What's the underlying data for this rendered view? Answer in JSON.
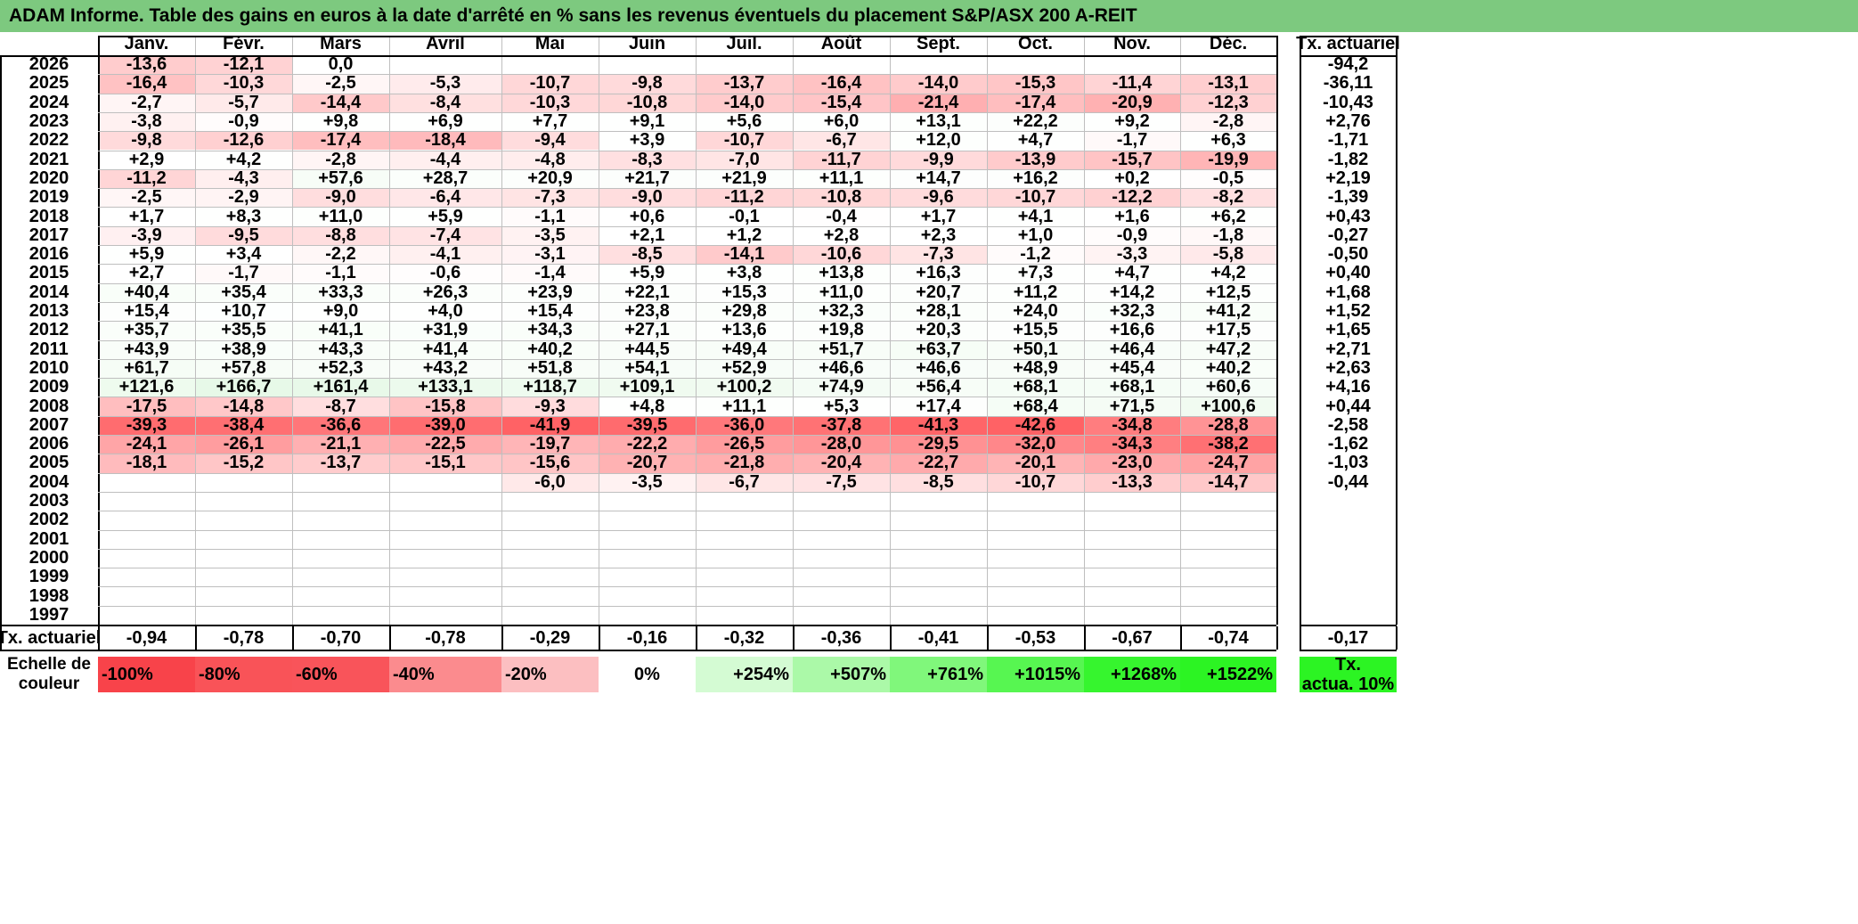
{
  "title": "ADAM Informe. Table des gains en euros à la date d'arrêté en % sans les revenus éventuels du placement S&P/ASX 200 A-REIT",
  "months": [
    "Janv.",
    "Févr.",
    "Mars",
    "Avril",
    "Mai",
    "Juin",
    "Juil.",
    "Août",
    "Sept.",
    "Oct.",
    "Nov.",
    "Déc."
  ],
  "annual_header": "Tx. actuariel",
  "rows": [
    {
      "year": "2026",
      "values": [
        "-13,6",
        "-12,1",
        "0,0",
        "",
        "",
        "",
        "",
        "",
        "",
        "",
        "",
        ""
      ],
      "rate": "-94,2"
    },
    {
      "year": "2025",
      "values": [
        "-16,4",
        "-10,3",
        "-2,5",
        "-5,3",
        "-10,7",
        "-9,8",
        "-13,7",
        "-16,4",
        "-14,0",
        "-15,3",
        "-11,4",
        "-13,1"
      ],
      "rate": "-36,11"
    },
    {
      "year": "2024",
      "values": [
        "-2,7",
        "-5,7",
        "-14,4",
        "-8,4",
        "-10,3",
        "-10,8",
        "-14,0",
        "-15,4",
        "-21,4",
        "-17,4",
        "-20,9",
        "-12,3"
      ],
      "rate": "-10,43"
    },
    {
      "year": "2023",
      "values": [
        "-3,8",
        "-0,9",
        "+9,8",
        "+6,9",
        "+7,7",
        "+9,1",
        "+5,6",
        "+6,0",
        "+13,1",
        "+22,2",
        "+9,2",
        "-2,8"
      ],
      "rate": "+2,76"
    },
    {
      "year": "2022",
      "values": [
        "-9,8",
        "-12,6",
        "-17,4",
        "-18,4",
        "-9,4",
        "+3,9",
        "-10,7",
        "-6,7",
        "+12,0",
        "+4,7",
        "-1,7",
        "+6,3"
      ],
      "rate": "-1,71"
    },
    {
      "year": "2021",
      "values": [
        "+2,9",
        "+4,2",
        "-2,8",
        "-4,4",
        "-4,8",
        "-8,3",
        "-7,0",
        "-11,7",
        "-9,9",
        "-13,9",
        "-15,7",
        "-19,9"
      ],
      "rate": "-1,82"
    },
    {
      "year": "2020",
      "values": [
        "-11,2",
        "-4,3",
        "+57,6",
        "+28,7",
        "+20,9",
        "+21,7",
        "+21,9",
        "+11,1",
        "+14,7",
        "+16,2",
        "+0,2",
        "-0,5"
      ],
      "rate": "+2,19"
    },
    {
      "year": "2019",
      "values": [
        "-2,5",
        "-2,9",
        "-9,0",
        "-6,4",
        "-7,3",
        "-9,0",
        "-11,2",
        "-10,8",
        "-9,6",
        "-10,7",
        "-12,2",
        "-8,2"
      ],
      "rate": "-1,39"
    },
    {
      "year": "2018",
      "values": [
        "+1,7",
        "+8,3",
        "+11,0",
        "+5,9",
        "-1,1",
        "+0,6",
        "-0,1",
        "-0,4",
        "+1,7",
        "+4,1",
        "+1,6",
        "+6,2"
      ],
      "rate": "+0,43"
    },
    {
      "year": "2017",
      "values": [
        "-3,9",
        "-9,5",
        "-8,8",
        "-7,4",
        "-3,5",
        "+2,1",
        "+1,2",
        "+2,8",
        "+2,3",
        "+1,0",
        "-0,9",
        "-1,8"
      ],
      "rate": "-0,27"
    },
    {
      "year": "2016",
      "values": [
        "+5,9",
        "+3,4",
        "-2,2",
        "-4,1",
        "-3,1",
        "-8,5",
        "-14,1",
        "-10,6",
        "-7,3",
        "-1,2",
        "-3,3",
        "-5,8"
      ],
      "rate": "-0,50"
    },
    {
      "year": "2015",
      "values": [
        "+2,7",
        "-1,7",
        "-1,1",
        "-0,6",
        "-1,4",
        "+5,9",
        "+3,8",
        "+13,8",
        "+16,3",
        "+7,3",
        "+4,7",
        "+4,2"
      ],
      "rate": "+0,40"
    },
    {
      "year": "2014",
      "values": [
        "+40,4",
        "+35,4",
        "+33,3",
        "+26,3",
        "+23,9",
        "+22,1",
        "+15,3",
        "+11,0",
        "+20,7",
        "+11,2",
        "+14,2",
        "+12,5"
      ],
      "rate": "+1,68"
    },
    {
      "year": "2013",
      "values": [
        "+15,4",
        "+10,7",
        "+9,0",
        "+4,0",
        "+15,4",
        "+23,8",
        "+29,8",
        "+32,3",
        "+28,1",
        "+24,0",
        "+32,3",
        "+41,2"
      ],
      "rate": "+1,52"
    },
    {
      "year": "2012",
      "values": [
        "+35,7",
        "+35,5",
        "+41,1",
        "+31,9",
        "+34,3",
        "+27,1",
        "+13,6",
        "+19,8",
        "+20,3",
        "+15,5",
        "+16,6",
        "+17,5"
      ],
      "rate": "+1,65"
    },
    {
      "year": "2011",
      "values": [
        "+43,9",
        "+38,9",
        "+43,3",
        "+41,4",
        "+40,2",
        "+44,5",
        "+49,4",
        "+51,7",
        "+63,7",
        "+50,1",
        "+46,4",
        "+47,2"
      ],
      "rate": "+2,71"
    },
    {
      "year": "2010",
      "values": [
        "+61,7",
        "+57,8",
        "+52,3",
        "+43,2",
        "+51,8",
        "+54,1",
        "+52,9",
        "+46,6",
        "+46,6",
        "+48,9",
        "+45,4",
        "+40,2"
      ],
      "rate": "+2,63"
    },
    {
      "year": "2009",
      "values": [
        "+121,6",
        "+166,7",
        "+161,4",
        "+133,1",
        "+118,7",
        "+109,1",
        "+100,2",
        "+74,9",
        "+56,4",
        "+68,1",
        "+68,1",
        "+60,6"
      ],
      "rate": "+4,16"
    },
    {
      "year": "2008",
      "values": [
        "-17,5",
        "-14,8",
        "-8,7",
        "-15,8",
        "-9,3",
        "+4,8",
        "+11,1",
        "+5,3",
        "+17,4",
        "+68,4",
        "+71,5",
        "+100,6"
      ],
      "rate": "+0,44"
    },
    {
      "year": "2007",
      "values": [
        "-39,3",
        "-38,4",
        "-36,6",
        "-39,0",
        "-41,9",
        "-39,5",
        "-36,0",
        "-37,8",
        "-41,3",
        "-42,6",
        "-34,8",
        "-28,8"
      ],
      "rate": "-2,58"
    },
    {
      "year": "2006",
      "values": [
        "-24,1",
        "-26,1",
        "-21,1",
        "-22,5",
        "-19,7",
        "-22,2",
        "-26,5",
        "-28,0",
        "-29,5",
        "-32,0",
        "-34,3",
        "-38,2"
      ],
      "rate": "-1,62"
    },
    {
      "year": "2005",
      "values": [
        "-18,1",
        "-15,2",
        "-13,7",
        "-15,1",
        "-15,6",
        "-20,7",
        "-21,8",
        "-20,4",
        "-22,7",
        "-20,1",
        "-23,0",
        "-24,7"
      ],
      "rate": "-1,03"
    },
    {
      "year": "2004",
      "values": [
        "",
        "",
        "",
        "",
        "-6,0",
        "-3,5",
        "-6,7",
        "-7,5",
        "-8,5",
        "-10,7",
        "-13,3",
        "-14,7"
      ],
      "rate": "-0,44"
    },
    {
      "year": "2003",
      "values": [
        "",
        "",
        "",
        "",
        "",
        "",
        "",
        "",
        "",
        "",
        "",
        ""
      ],
      "rate": ""
    },
    {
      "year": "2002",
      "values": [
        "",
        "",
        "",
        "",
        "",
        "",
        "",
        "",
        "",
        "",
        "",
        ""
      ],
      "rate": ""
    },
    {
      "year": "2001",
      "values": [
        "",
        "",
        "",
        "",
        "",
        "",
        "",
        "",
        "",
        "",
        "",
        ""
      ],
      "rate": ""
    },
    {
      "year": "2000",
      "values": [
        "",
        "",
        "",
        "",
        "",
        "",
        "",
        "",
        "",
        "",
        "",
        ""
      ],
      "rate": ""
    },
    {
      "year": "1999",
      "values": [
        "",
        "",
        "",
        "",
        "",
        "",
        "",
        "",
        "",
        "",
        "",
        ""
      ],
      "rate": ""
    },
    {
      "year": "1998",
      "values": [
        "",
        "",
        "",
        "",
        "",
        "",
        "",
        "",
        "",
        "",
        "",
        ""
      ],
      "rate": ""
    },
    {
      "year": "1997",
      "values": [
        "",
        "",
        "",
        "",
        "",
        "",
        "",
        "",
        "",
        "",
        "",
        ""
      ],
      "rate": ""
    }
  ],
  "summary": {
    "label": "Tx. actuariel",
    "values": [
      "-0,94",
      "-0,78",
      "-0,70",
      "-0,78",
      "-0,29",
      "-0,16",
      "-0,32",
      "-0,36",
      "-0,41",
      "-0,53",
      "-0,67",
      "-0,74"
    ],
    "rate": "-0,17"
  },
  "scale": {
    "label_line1": "Echelle de",
    "label_line2": "couleur",
    "steps": [
      {
        "text": "-100%",
        "color": "#f8434a",
        "align": "l"
      },
      {
        "text": "-80%",
        "color": "#f95358",
        "align": "l"
      },
      {
        "text": "-60%",
        "color": "#f9545a",
        "align": "l"
      },
      {
        "text": "-40%",
        "color": "#fb8b8e",
        "align": "l"
      },
      {
        "text": "-20%",
        "color": "#fcbfc1",
        "align": "l"
      },
      {
        "text": "0%",
        "color": "#ffffff",
        "align": "c"
      },
      {
        "text": "+254%",
        "color": "#d4fbd3",
        "align": "r"
      },
      {
        "text": "+507%",
        "color": "#abf9a8",
        "align": "r"
      },
      {
        "text": "+761%",
        "color": "#80f77b",
        "align": "r"
      },
      {
        "text": "+1015%",
        "color": "#57f651",
        "align": "r"
      },
      {
        "text": "+1268%",
        "color": "#36f52e",
        "align": "r"
      },
      {
        "text": "+1522%",
        "color": "#2cf423",
        "align": "r"
      }
    ],
    "rate_line1": "Tx.",
    "rate_line2": "actua. 10%",
    "rate_color": "#2cf423"
  },
  "colors": {
    "title_bg": "#7dc97f",
    "neg_max": "#f8696b",
    "pos_max": "#63be7b"
  }
}
